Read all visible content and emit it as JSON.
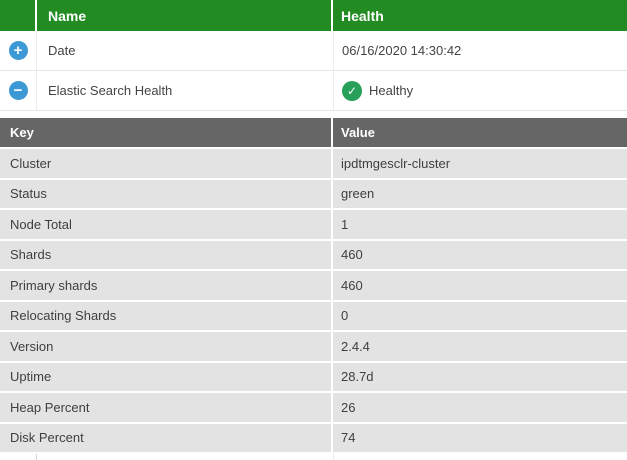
{
  "colors": {
    "header_green": "#228b22",
    "kv_header_gray": "#666666",
    "row_gray": "#e3e3e3",
    "expander_blue": "#3c99d6",
    "healthy_green": "#28a05a",
    "header_text": "#ffffff",
    "body_text": "#3f3f3f"
  },
  "outer_table": {
    "headers": {
      "name": "Name",
      "health": "Health"
    },
    "rows": [
      {
        "expander_glyph": "+",
        "name": "Date",
        "health": "06/16/2020 14:30:42"
      },
      {
        "expander_glyph": "−",
        "name": "Elastic Search Health",
        "health": "Healthy",
        "health_icon_glyph": "✓"
      }
    ]
  },
  "detail_table": {
    "headers": {
      "key": "Key",
      "value": "Value"
    },
    "rows": [
      {
        "key": "Cluster",
        "value": "ipdtmgesclr-cluster"
      },
      {
        "key": "Status",
        "value": "green"
      },
      {
        "key": "Node Total",
        "value": "1"
      },
      {
        "key": "Shards",
        "value": "460"
      },
      {
        "key": "Primary shards",
        "value": "460"
      },
      {
        "key": "Relocating Shards",
        "value": "0"
      },
      {
        "key": "Version",
        "value": "2.4.4"
      },
      {
        "key": "Uptime",
        "value": "28.7d"
      },
      {
        "key": "Heap Percent",
        "value": "26"
      },
      {
        "key": "Disk Percent",
        "value": "74"
      }
    ]
  }
}
